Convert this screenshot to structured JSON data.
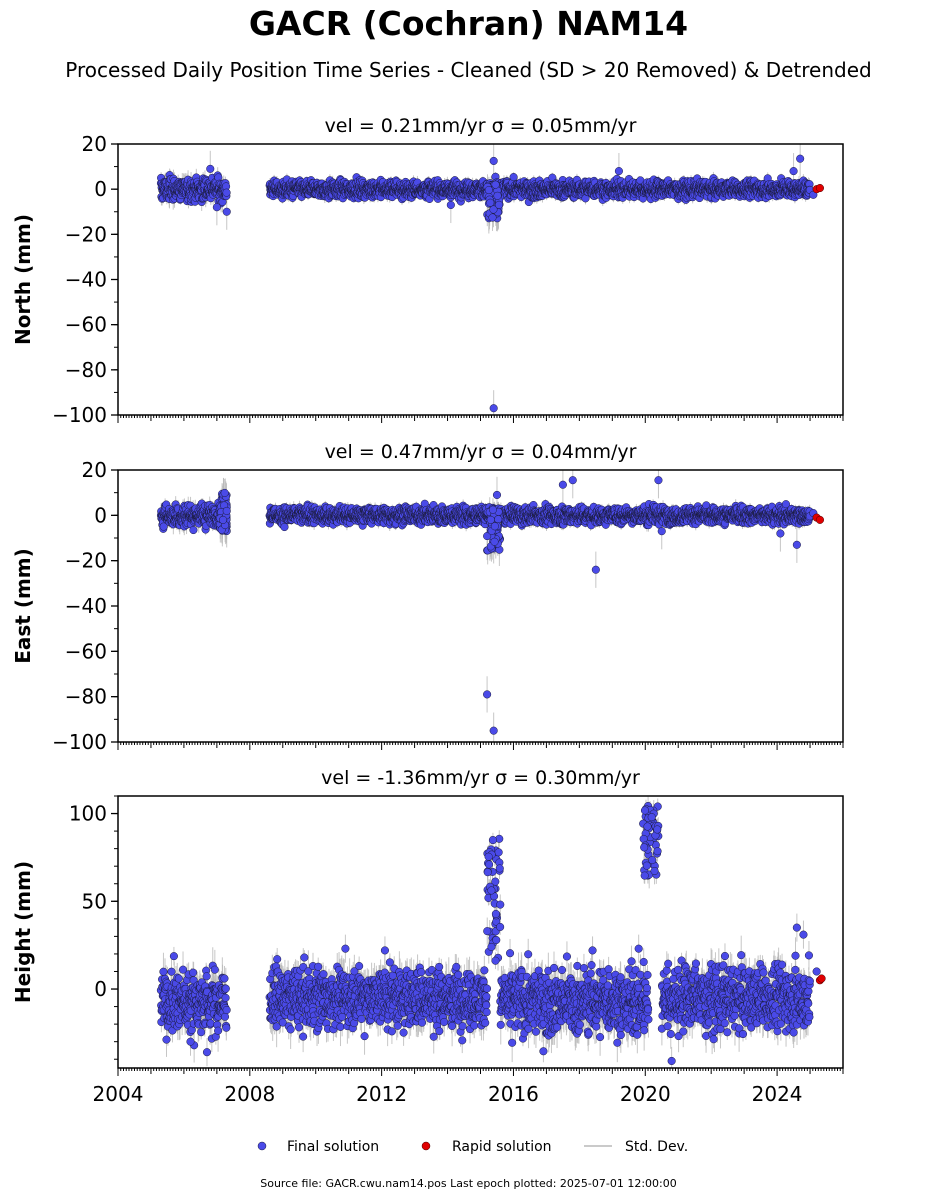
{
  "title": "GACR (Cochran) NAM14",
  "subtitle": "Processed Daily Position Time Series - Cleaned (SD > 20 Removed) & Detrended",
  "footer": "Source file: GACR.cwu.nam14.pos  Last epoch plotted: 2025-07-01 12:00:00",
  "legend": {
    "final": "Final solution",
    "rapid": "Rapid solution",
    "std": "Std. Dev."
  },
  "colors": {
    "final": "#4a4ae8",
    "rapid": "#e00000",
    "std": "#b8b8b8"
  },
  "chart_data": [
    {
      "type": "scatter",
      "title": "vel = 0.21mm/yr   σ = 0.05mm/yr",
      "ylabel": "North (mm)",
      "xlim": [
        2004,
        2026
      ],
      "ylim": [
        -100,
        20
      ],
      "yticks": [
        20,
        0,
        -20,
        -40,
        -60,
        -80,
        -100
      ],
      "xticks": [
        2004,
        2008,
        2012,
        2016,
        2020,
        2024
      ],
      "show_xticklabels": false,
      "segments": [
        {
          "start": 2005.3,
          "end": 2007.3,
          "center": 0,
          "amp": 2.5,
          "err": 3
        },
        {
          "start": 2008.6,
          "end": 2025.0,
          "center": 0,
          "amp": 1.8,
          "err": 2
        }
      ],
      "excursions": [
        {
          "start": 2015.2,
          "end": 2015.6,
          "min": -13,
          "max": 2
        }
      ],
      "outliers": [
        [
          2006.8,
          9
        ],
        [
          2007.0,
          -8
        ],
        [
          2007.3,
          -10
        ],
        [
          2014.1,
          -7
        ],
        [
          2015.4,
          12.5
        ],
        [
          2015.4,
          -97
        ],
        [
          2019.2,
          8
        ],
        [
          2024.5,
          8
        ],
        [
          2024.7,
          13.5
        ]
      ],
      "rapid": [
        [
          2025.2,
          0
        ],
        [
          2025.3,
          0.5
        ]
      ],
      "final_tail": [
        [
          2025.1,
          -2.5
        ]
      ]
    },
    {
      "type": "scatter",
      "title": "vel = 0.47mm/yr   σ = 0.04mm/yr",
      "ylabel": "East (mm)",
      "xlim": [
        2004,
        2026
      ],
      "ylim": [
        -100,
        20
      ],
      "yticks": [
        20,
        0,
        -20,
        -40,
        -60,
        -80,
        -100
      ],
      "xticks": [
        2004,
        2008,
        2012,
        2016,
        2020,
        2024
      ],
      "show_xticklabels": false,
      "segments": [
        {
          "start": 2005.3,
          "end": 2007.3,
          "center": 0,
          "amp": 2.5,
          "err": 3
        },
        {
          "start": 2008.6,
          "end": 2025.0,
          "center": 0,
          "amp": 1.8,
          "err": 2
        }
      ],
      "excursions": [
        {
          "start": 2015.2,
          "end": 2015.6,
          "min": -16,
          "max": 3
        },
        {
          "start": 2007.1,
          "end": 2007.3,
          "min": -7,
          "max": 10
        }
      ],
      "outliers": [
        [
          2015.2,
          -79
        ],
        [
          2015.4,
          -95
        ],
        [
          2015.5,
          9
        ],
        [
          2017.5,
          13.5
        ],
        [
          2017.8,
          15.5
        ],
        [
          2018.5,
          -24
        ],
        [
          2020.4,
          15.5
        ],
        [
          2020.5,
          -7
        ],
        [
          2024.6,
          -13
        ],
        [
          2024.1,
          -8
        ]
      ],
      "rapid": [
        [
          2025.2,
          -1
        ],
        [
          2025.3,
          -2
        ]
      ],
      "final_tail": [
        [
          2025.1,
          1
        ]
      ]
    },
    {
      "type": "scatter",
      "title": "vel = -1.36mm/yr   σ = 0.30mm/yr",
      "ylabel": "Height (mm)",
      "xlim": [
        2004,
        2026
      ],
      "ylim": [
        -45,
        110
      ],
      "yticks": [
        100,
        50,
        0
      ],
      "xticks": [
        2004,
        2008,
        2012,
        2016,
        2020,
        2024
      ],
      "show_xticklabels": true,
      "segments": [
        {
          "start": 2005.3,
          "end": 2007.3,
          "center": -7,
          "amp": 9,
          "err": 8
        },
        {
          "start": 2008.6,
          "end": 2015.2,
          "center": -5,
          "amp": 8,
          "err": 8
        },
        {
          "start": 2015.6,
          "end": 2020.1,
          "center": -7,
          "amp": 9,
          "err": 8
        },
        {
          "start": 2020.5,
          "end": 2025.0,
          "center": -5,
          "amp": 9,
          "err": 8
        }
      ],
      "excursions": [
        {
          "start": 2015.2,
          "end": 2015.6,
          "min": 15,
          "max": 86
        },
        {
          "start": 2019.9,
          "end": 2020.4,
          "min": 62,
          "max": 107
        }
      ],
      "outliers": [
        [
          2006.7,
          -36
        ],
        [
          2006.2,
          -30
        ],
        [
          2010.9,
          23
        ],
        [
          2012.1,
          22
        ],
        [
          2018.4,
          22
        ],
        [
          2019.8,
          23
        ],
        [
          2024.6,
          35
        ],
        [
          2024.8,
          31
        ],
        [
          2020.8,
          -41
        ]
      ],
      "rapid": [
        [
          2025.3,
          5
        ],
        [
          2025.35,
          6
        ]
      ],
      "final_tail": [
        [
          2025.2,
          10
        ]
      ]
    }
  ]
}
